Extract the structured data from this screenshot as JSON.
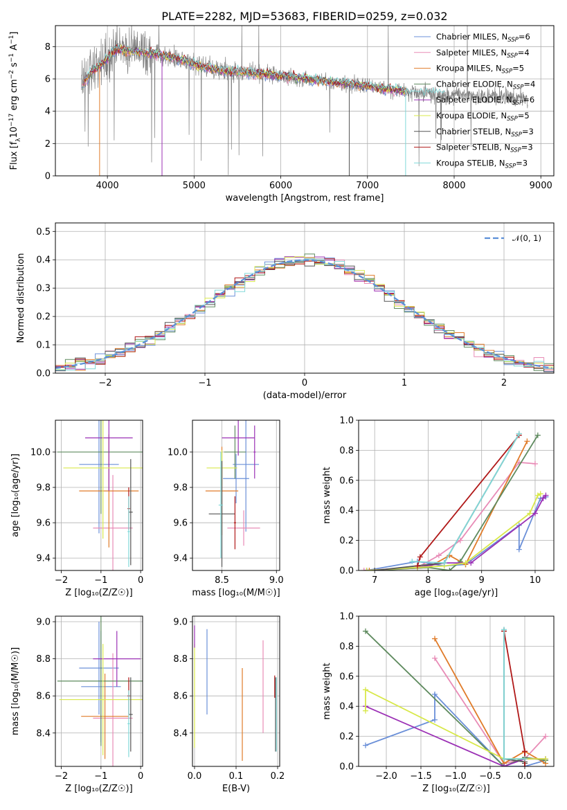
{
  "figure": {
    "title": "PLATE=2282, MJD=53683, FIBERID=0259, z=0.032"
  },
  "legend": {
    "entries": [
      {
        "label": "Chabrier MILES, N",
        "sub": "SSP",
        "suffix": "=6",
        "color": "#6a8fd8"
      },
      {
        "label": "Salpeter MILES, N",
        "sub": "SSP",
        "suffix": "=4",
        "color": "#e88bb6"
      },
      {
        "label": "Kroupa MILES, N",
        "sub": "SSP",
        "suffix": "=5",
        "color": "#e07b29"
      },
      {
        "label": "Chabrier ELODIE, N",
        "sub": "SSP",
        "suffix": "=4",
        "color": "#5e8a5e"
      },
      {
        "label": "Salpeter ELODIE, N",
        "sub": "SSP",
        "suffix": "=6",
        "color": "#9b30b5"
      },
      {
        "label": "Kroupa ELODIE, N",
        "sub": "SSP",
        "suffix": "=5",
        "color": "#d8e84a"
      },
      {
        "label": "Chabrier STELIB, N",
        "sub": "SSP",
        "suffix": "=3",
        "color": "#555555"
      },
      {
        "label": "Salpeter STELIB, N",
        "sub": "SSP",
        "suffix": "=3",
        "color": "#b01818"
      },
      {
        "label": "Kroupa STELIB, N",
        "sub": "SSP",
        "suffix": "=3",
        "color": "#80d8d8"
      }
    ],
    "normal_label": "𝒩(0, 1)",
    "normal_color": "#5b8fd8"
  },
  "chart_data": [
    {
      "id": "spectrum",
      "type": "line",
      "xlabel": "wavelength [Angstrom, rest frame]",
      "ylabel_main": "Flux [f",
      "ylabel_sub": "λ",
      "ylabel_rest": "10",
      "ylabel_exp": "−17",
      "ylabel_units": " erg cm",
      "ylabel_units_exp": "−2",
      "ylabel_s": " s",
      "ylabel_s_exp": "−1",
      "ylabel_a": " A",
      "ylabel_a_exp": "−1",
      "ylabel_end": "]",
      "xlim": [
        3400,
        9150
      ],
      "ylim": [
        0,
        9.3
      ],
      "xticks": [
        "4000",
        "5000",
        "6000",
        "7000",
        "8000",
        "9000"
      ],
      "xtick_values": [
        4000,
        5000,
        6000,
        7000,
        8000,
        9000
      ],
      "yticks": [
        "0",
        "2",
        "4",
        "6",
        "8"
      ],
      "ytick_values": [
        0,
        2,
        4,
        6,
        8
      ],
      "data_color": "#808080",
      "data_range": [
        3700,
        8850
      ],
      "model_range": [
        3700,
        7450
      ],
      "model_shape_x": [
        3700,
        3800,
        3950,
        4100,
        4300,
        4500,
        4800,
        5000,
        5300,
        5600,
        6000,
        6300,
        6600,
        6900,
        7200,
        7450,
        7800,
        8200,
        8500,
        8850
      ],
      "model_shape_y": [
        5.6,
        6.3,
        7.0,
        7.8,
        7.7,
        7.6,
        7.3,
        6.9,
        6.5,
        6.4,
        6.2,
        6.0,
        5.8,
        5.6,
        5.4,
        5.2,
        5.1,
        5.0,
        4.9,
        4.8
      ]
    },
    {
      "id": "residuals",
      "type": "histogram",
      "xlabel": "(data-model)/error",
      "ylabel": "Normed distribution",
      "xlim": [
        -2.5,
        2.5
      ],
      "ylim": [
        0,
        0.53
      ],
      "xticks": [
        "−2",
        "−1",
        "0",
        "1",
        "2"
      ],
      "xtick_values": [
        -2,
        -1,
        0,
        1,
        2
      ],
      "yticks": [
        "0.0",
        "0.1",
        "0.2",
        "0.3",
        "0.4",
        "0.5"
      ],
      "ytick_values": [
        0,
        0.1,
        0.2,
        0.3,
        0.4,
        0.5
      ],
      "bin_width": 0.1
    },
    {
      "id": "age_vs_Z",
      "type": "errorbar",
      "xlabel": "Z [log₁₀(Z/Z☉)]",
      "ylabel": "age  [log₁₀(age/yr)]",
      "xlim": [
        -2.15,
        0.05
      ],
      "ylim": [
        9.33,
        10.18
      ],
      "xticks": [
        "−2",
        "−1",
        "0"
      ],
      "xtick_values": [
        -2,
        -1,
        0
      ],
      "yticks": [
        "9.4",
        "9.6",
        "9.8",
        "10.0"
      ],
      "ytick_values": [
        9.4,
        9.6,
        9.8,
        10.0
      ],
      "points": [
        {
          "x": -1.05,
          "xerr": 0.5,
          "y": 9.93,
          "yerr": 0.39,
          "color": "#6a8fd8"
        },
        {
          "x": -0.7,
          "xerr": 0.5,
          "y": 9.57,
          "yerr": 0.3,
          "color": "#e88bb6"
        },
        {
          "x": -0.8,
          "xerr": 0.75,
          "y": 9.78,
          "yerr": 0.32,
          "color": "#e07b29"
        },
        {
          "x": -1.0,
          "xerr": 1.1,
          "y": 10.0,
          "yerr": 0.35,
          "color": "#5e8a5e"
        },
        {
          "x": -0.8,
          "xerr": 0.6,
          "y": 10.08,
          "yerr": 0.3,
          "color": "#9b30b5"
        },
        {
          "x": -0.95,
          "xerr": 1.0,
          "y": 9.91,
          "yerr": 0.4,
          "color": "#d8e84a"
        },
        {
          "x": -0.25,
          "xerr": 0.05,
          "y": 9.66,
          "yerr": 0.3,
          "color": "#555555"
        },
        {
          "x": -0.3,
          "xerr": 0.03,
          "y": 9.68,
          "yerr": 0.12,
          "color": "#b01818"
        },
        {
          "x": -0.3,
          "xerr": 0.03,
          "y": 9.55,
          "yerr": 0.2,
          "color": "#80d8d8"
        }
      ]
    },
    {
      "id": "age_vs_mass",
      "type": "errorbar",
      "xlabel": "mass [log₁₀(M/M☉)]",
      "ylabel": "",
      "xlim": [
        8.23,
        9.03
      ],
      "ylim": [
        9.33,
        10.18
      ],
      "xticks": [
        "8.5",
        "9.0"
      ],
      "xtick_values": [
        8.5,
        9.0
      ],
      "yticks": [
        "9.4",
        "9.6",
        "9.8",
        "10.0"
      ],
      "ytick_values": [
        9.4,
        9.6,
        9.8,
        10.0
      ],
      "points": [
        {
          "x": 8.63,
          "xerr": 0.12,
          "y": 9.85,
          "yerr": 0.14,
          "color": "#6a8fd8"
        },
        {
          "x": 8.72,
          "xerr": 0.12,
          "y": 9.93,
          "yerr": 0.38,
          "color": "#6a8fd8"
        },
        {
          "x": 8.7,
          "xerr": 0.15,
          "y": 9.57,
          "yerr": 0.1,
          "color": "#e88bb6"
        },
        {
          "x": 8.5,
          "xerr": 0.15,
          "y": 9.78,
          "yerr": 0.25,
          "color": "#e07b29"
        },
        {
          "x": 8.62,
          "xerr": 0.1,
          "y": 10.0,
          "yerr": 0.15,
          "color": "#5e8a5e"
        },
        {
          "x": 8.65,
          "xerr": 0.15,
          "y": 10.08,
          "yerr": 0.1,
          "color": "#9b30b5"
        },
        {
          "x": 8.8,
          "xerr": 0.01,
          "y": 10.0,
          "yerr": 0.15,
          "color": "#9b30b5"
        },
        {
          "x": 8.5,
          "xerr": 0.14,
          "y": 9.91,
          "yerr": 0.1,
          "color": "#d8e84a"
        },
        {
          "x": 8.5,
          "xerr": 0.12,
          "y": 9.65,
          "yerr": 0.3,
          "color": "#555555"
        },
        {
          "x": 8.62,
          "xerr": 0.01,
          "y": 9.6,
          "yerr": 0.15,
          "color": "#b01818"
        },
        {
          "x": 8.49,
          "xerr": 0.02,
          "y": 9.7,
          "yerr": 0.3,
          "color": "#80d8d8"
        }
      ]
    },
    {
      "id": "massweight_vs_age",
      "type": "line",
      "xlabel": "age  [log₁₀(age/yr)]",
      "ylabel": "mass weight",
      "xlim": [
        6.7,
        10.35
      ],
      "ylim": [
        0,
        1.0
      ],
      "xticks": [
        "7",
        "8",
        "9",
        "10"
      ],
      "xtick_values": [
        7,
        8,
        9,
        10
      ],
      "yticks": [
        "0.0",
        "0.2",
        "0.4",
        "0.6",
        "0.8",
        "1.0"
      ],
      "ytick_values": [
        0,
        0.2,
        0.4,
        0.6,
        0.8,
        1.0
      ],
      "series": [
        {
          "color": "#6a8fd8",
          "x": [
            6.85,
            7.8,
            8.3,
            8.7,
            9.7,
            9.7,
            10.1,
            10.2
          ],
          "y": [
            0.0,
            0.06,
            0.03,
            0.04,
            0.3,
            0.14,
            0.48,
            0.49
          ]
        },
        {
          "color": "#e88bb6",
          "x": [
            6.8,
            7.8,
            8.2,
            8.6,
            9.7,
            10.0
          ],
          "y": [
            0.0,
            0.02,
            0.1,
            0.2,
            0.72,
            0.71
          ]
        },
        {
          "color": "#e07b29",
          "x": [
            6.9,
            8.0,
            8.4,
            8.7,
            9.85
          ],
          "y": [
            0.0,
            0.02,
            0.1,
            0.04,
            0.86
          ]
        },
        {
          "color": "#5e8a5e",
          "x": [
            7.0,
            8.0,
            8.4,
            8.6,
            10.05
          ],
          "y": [
            0.0,
            0.02,
            0.0,
            0.06,
            0.9
          ]
        },
        {
          "color": "#9b30b5",
          "x": [
            6.85,
            7.8,
            8.3,
            8.8,
            10.0,
            10.15,
            10.2
          ],
          "y": [
            0.0,
            0.02,
            0.05,
            0.05,
            0.38,
            0.48,
            0.5
          ]
        },
        {
          "color": "#d8e84a",
          "x": [
            6.85,
            7.8,
            8.3,
            8.7,
            9.9,
            10.05,
            10.1
          ],
          "y": [
            0.0,
            0.02,
            0.03,
            0.05,
            0.38,
            0.5,
            0.51
          ]
        },
        {
          "color": "#555555",
          "x": [
            7.0,
            8.3,
            9.7
          ],
          "y": [
            0.0,
            0.05,
            0.91
          ]
        },
        {
          "color": "#b01818",
          "x": [
            7.8,
            7.85,
            9.7
          ],
          "y": [
            0.03,
            0.09,
            0.9
          ]
        },
        {
          "color": "#80d8d8",
          "x": [
            7.7,
            8.3,
            9.7
          ],
          "y": [
            0.06,
            0.05,
            0.91
          ]
        }
      ]
    },
    {
      "id": "mass_vs_Z",
      "type": "errorbar",
      "xlabel": "Z [log₁₀(Z/Z☉)]",
      "ylabel": "mass [log₁₀(M/M☉)]",
      "xlim": [
        -2.15,
        0.05
      ],
      "ylim": [
        8.22,
        9.03
      ],
      "xticks": [
        "−2",
        "−1",
        "0"
      ],
      "xtick_values": [
        -2,
        -1,
        0
      ],
      "yticks": [
        "8.4",
        "8.6",
        "8.8",
        "9.0"
      ],
      "ytick_values": [
        8.4,
        8.6,
        8.8,
        9.0
      ],
      "points": [
        {
          "x": -1.05,
          "xerr": 0.5,
          "y": 8.75,
          "yerr": 0.25,
          "color": "#6a8fd8"
        },
        {
          "x": -1.0,
          "xerr": 0.5,
          "y": 8.65,
          "yerr": 0.3,
          "color": "#6a8fd8"
        },
        {
          "x": -0.7,
          "xerr": 0.5,
          "y": 8.48,
          "yerr": 0.35,
          "color": "#e88bb6"
        },
        {
          "x": -0.9,
          "xerr": 0.6,
          "y": 8.49,
          "yerr": 0.23,
          "color": "#e07b29"
        },
        {
          "x": -1.0,
          "xerr": 1.1,
          "y": 8.68,
          "yerr": 0.35,
          "color": "#5e8a5e"
        },
        {
          "x": -0.6,
          "xerr": 0.6,
          "y": 8.8,
          "yerr": 0.15,
          "color": "#9b30b5"
        },
        {
          "x": -0.95,
          "xerr": 1.1,
          "y": 8.58,
          "yerr": 0.3,
          "color": "#d8e84a"
        },
        {
          "x": -0.25,
          "xerr": 0.05,
          "y": 8.5,
          "yerr": 0.2,
          "color": "#555555"
        },
        {
          "x": -0.3,
          "xerr": 0.03,
          "y": 8.6,
          "yerr": 0.1,
          "color": "#b01818"
        },
        {
          "x": -0.3,
          "xerr": 0.03,
          "y": 8.45,
          "yerr": 0.18,
          "color": "#80d8d8"
        }
      ]
    },
    {
      "id": "mass_vs_EBV",
      "type": "errorbar",
      "xlabel": "E(B-V)",
      "ylabel": "",
      "xlim": [
        -0.005,
        0.205
      ],
      "ylim": [
        8.22,
        9.03
      ],
      "xticks": [
        "0.0",
        "0.1",
        "0.2"
      ],
      "xtick_values": [
        0,
        0.1,
        0.2
      ],
      "yticks": [
        "8.4",
        "8.6",
        "8.8",
        "9.0"
      ],
      "ytick_values": [
        8.4,
        8.6,
        8.8,
        9.0
      ],
      "points": [
        {
          "x": 0.0,
          "xerr": 0,
          "y": 8.6,
          "yerr": 0.28,
          "color": "#d8e84a"
        },
        {
          "x": 0.0,
          "xerr": 0,
          "y": 8.92,
          "yerr": 0.06,
          "color": "#9b30b5"
        },
        {
          "x": 0.03,
          "xerr": 0,
          "y": 8.73,
          "yerr": 0.23,
          "color": "#6a8fd8"
        },
        {
          "x": 0.115,
          "xerr": 0,
          "y": 8.5,
          "yerr": 0.25,
          "color": "#e07b29"
        },
        {
          "x": 0.165,
          "xerr": 0,
          "y": 8.65,
          "yerr": 0.25,
          "color": "#e88bb6"
        },
        {
          "x": 0.195,
          "xerr": 0,
          "y": 8.5,
          "yerr": 0.2,
          "color": "#555555"
        },
        {
          "x": 0.197,
          "xerr": 0,
          "y": 8.5,
          "yerr": 0.2,
          "color": "#80d8d8"
        },
        {
          "x": 0.193,
          "xerr": 0,
          "y": 8.65,
          "yerr": 0.06,
          "color": "#b01818"
        }
      ]
    },
    {
      "id": "massweight_vs_Z",
      "type": "line",
      "xlabel": "Z [log₁₀(Z/Z☉)]",
      "ylabel": "mass weight",
      "xlim": [
        -2.4,
        0.42
      ],
      "ylim": [
        0,
        1.0
      ],
      "xticks": [
        "−2.0",
        "−1.5",
        "−1.0",
        "−0.5",
        "0.0"
      ],
      "xtick_values": [
        -2.0,
        -1.5,
        -1.0,
        -0.5,
        0.0
      ],
      "yticks": [
        "0.0",
        "0.2",
        "0.4",
        "0.6",
        "0.8",
        "1.0"
      ],
      "ytick_values": [
        0,
        0.2,
        0.4,
        0.6,
        0.8,
        1.0
      ],
      "series": [
        {
          "color": "#6a8fd8",
          "x": [
            -2.3,
            -1.3,
            -1.3,
            -0.3,
            0.0,
            0.3
          ],
          "y": [
            0.14,
            0.31,
            0.48,
            0.0,
            0.0,
            0.04
          ]
        },
        {
          "color": "#e88bb6",
          "x": [
            -1.3,
            -0.3,
            0.0,
            0.3
          ],
          "y": [
            0.72,
            0.02,
            0.05,
            0.2
          ]
        },
        {
          "color": "#e07b29",
          "x": [
            -1.3,
            -0.3,
            0.0,
            0.3
          ],
          "y": [
            0.85,
            0.02,
            0.1,
            0.02
          ]
        },
        {
          "color": "#5e8a5e",
          "x": [
            -2.3,
            -0.3,
            0.0,
            0.3
          ],
          "y": [
            0.9,
            0.0,
            0.06,
            0.04
          ]
        },
        {
          "color": "#9b30b5",
          "x": [
            -2.3,
            -0.3,
            0.0,
            0.3
          ],
          "y": [
            0.4,
            0.0,
            0.05,
            0.05
          ]
        },
        {
          "color": "#d8e84a",
          "x": [
            -2.3,
            -2.3,
            -0.3,
            0.0,
            0.3
          ],
          "y": [
            0.37,
            0.51,
            0.05,
            0.05,
            0.05
          ]
        },
        {
          "color": "#555555",
          "x": [
            -0.3,
            -0.3,
            0.0,
            0.0
          ],
          "y": [
            0.91,
            0.05,
            0.03,
            0.02
          ]
        },
        {
          "color": "#b01818",
          "x": [
            -0.3,
            0.0,
            0.0
          ],
          "y": [
            0.9,
            0.1,
            0.0
          ]
        },
        {
          "color": "#80d8d8",
          "x": [
            -0.3,
            -0.3,
            0.0
          ],
          "y": [
            0.91,
            0.05,
            0.05
          ]
        }
      ]
    }
  ]
}
